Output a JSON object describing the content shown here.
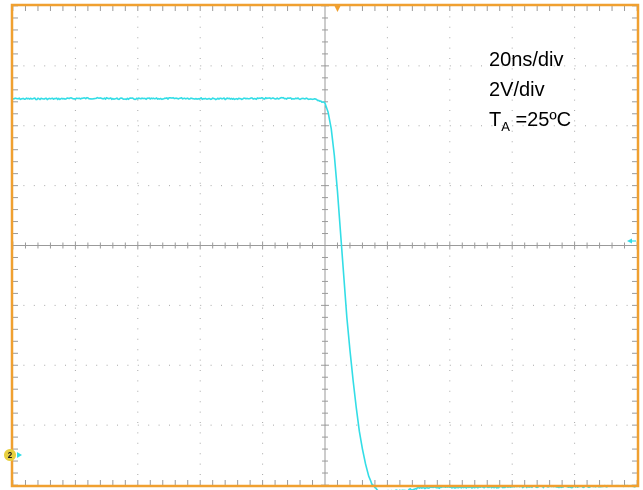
{
  "scope": {
    "frame_color": "#f0a030",
    "grid_color": "#9a9a9a",
    "trace_color": "#33dde6",
    "channel_badge_color": "#e8d040"
  },
  "annotations": {
    "timebase": "20ns/div",
    "volts": "2V/div",
    "temp_symbol": "T",
    "temp_subscript": "A",
    "temp_value": " =25ºC"
  },
  "channel": {
    "label": "2"
  },
  "chart_data": {
    "type": "line",
    "title": "",
    "xlabel": "",
    "ylabel": "",
    "divisions": {
      "x": 10,
      "y": 8
    },
    "xlim": [
      -100,
      100
    ],
    "ylim": [
      -8,
      8
    ],
    "x_units": "ns",
    "y_units": "V",
    "series": [
      {
        "points": [
          [
            -100,
            4.9
          ],
          [
            -95,
            4.9
          ],
          [
            -85,
            4.9
          ],
          [
            -75,
            4.92
          ],
          [
            -65,
            4.9
          ],
          [
            -55,
            4.9
          ],
          [
            -45,
            4.92
          ],
          [
            -35,
            4.9
          ],
          [
            -25,
            4.9
          ],
          [
            -15,
            4.92
          ],
          [
            -5,
            4.9
          ],
          [
            -2,
            4.86
          ],
          [
            0,
            4.75
          ],
          [
            1,
            4.45
          ],
          [
            2,
            3.9
          ],
          [
            3,
            3.0
          ],
          [
            4,
            1.8
          ],
          [
            5,
            0.4
          ],
          [
            6,
            -1.0
          ],
          [
            7,
            -2.4
          ],
          [
            8,
            -3.5
          ],
          [
            9,
            -4.5
          ],
          [
            10,
            -5.4
          ],
          [
            11,
            -6.2
          ],
          [
            12,
            -6.8
          ],
          [
            13,
            -7.3
          ],
          [
            14,
            -7.7
          ],
          [
            15,
            -7.95
          ],
          [
            16,
            -8.1
          ],
          [
            17,
            -8.2
          ],
          [
            18,
            -8.25
          ],
          [
            20,
            -8.2
          ],
          [
            25,
            -8.2
          ],
          [
            30,
            -8.1
          ],
          [
            40,
            -8.08
          ],
          [
            50,
            -8.08
          ],
          [
            60,
            -8.06
          ],
          [
            70,
            -8.06
          ],
          [
            80,
            -8.06
          ],
          [
            90,
            -8.04
          ],
          [
            100,
            -8.04
          ]
        ]
      }
    ]
  }
}
